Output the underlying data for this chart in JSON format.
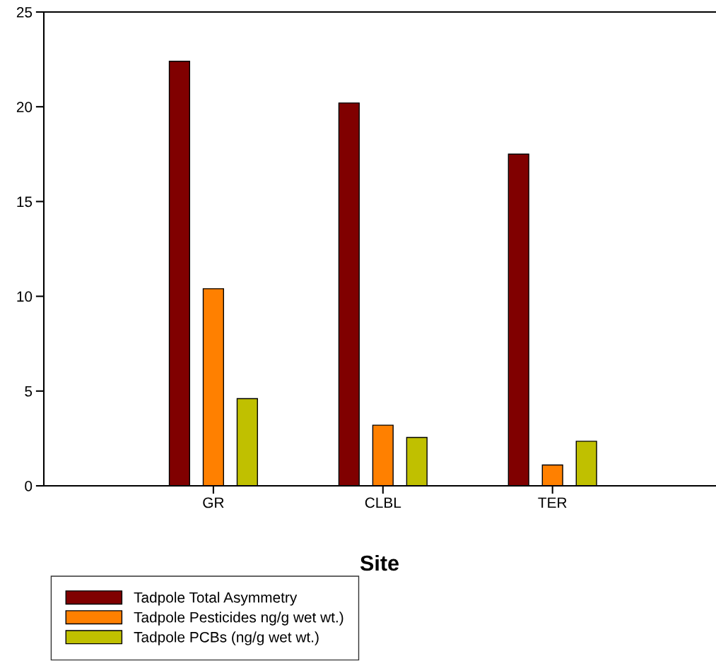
{
  "chart_data": {
    "type": "bar",
    "xlabel": "Site",
    "categories": [
      "GR",
      "CLBL",
      "TER"
    ],
    "series": [
      {
        "name": "Tadpole Total Asymmetry",
        "color": "#800000",
        "values": [
          22.4,
          20.2,
          17.5
        ]
      },
      {
        "name": "Tadpole Pesticides ng/g wet wt.)",
        "color": "#ff8000",
        "values": [
          10.4,
          3.2,
          1.1
        ]
      },
      {
        "name": "Tadpole PCBs (ng/g wet wt.)",
        "color": "#c0c000",
        "values": [
          4.6,
          2.55,
          2.35
        ]
      }
    ],
    "ylim": [
      0,
      25
    ],
    "yticks": [
      0,
      5,
      10,
      15,
      20,
      25
    ],
    "grid": false,
    "legend": "bottom left"
  }
}
